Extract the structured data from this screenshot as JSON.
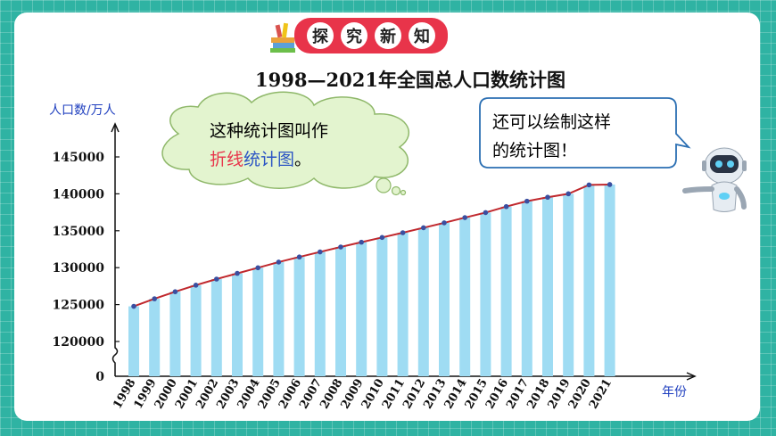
{
  "header": {
    "chars": [
      "探",
      "究",
      "新",
      "知"
    ]
  },
  "chart_data": {
    "type": "bar",
    "title": "1998—2021年全国总人口数统计图",
    "ylabel": "人口数/万人",
    "xlabel": "年份",
    "categories": [
      "1998",
      "1999",
      "2000",
      "2001",
      "2002",
      "2003",
      "2004",
      "2005",
      "2006",
      "2007",
      "2008",
      "2009",
      "2010",
      "2011",
      "2012",
      "2013",
      "2014",
      "2015",
      "2016",
      "2017",
      "2018",
      "2019",
      "2020",
      "2021"
    ],
    "values": [
      124761,
      125786,
      126743,
      127627,
      128453,
      129227,
      129988,
      130756,
      131448,
      132129,
      132802,
      133450,
      134091,
      134735,
      135404,
      136072,
      136782,
      137462,
      138271,
      139008,
      139538,
      140005,
      141212,
      141260
    ],
    "yticks": [
      0,
      120000,
      125000,
      130000,
      135000,
      140000,
      145000
    ],
    "ylim": [
      120000,
      145000
    ],
    "axis_break": true,
    "line_overlay": true,
    "colors": {
      "bar": "#9fdcf3",
      "line": "#c0282d",
      "point": "#3a4fa0"
    }
  },
  "bubbles": {
    "left_line1": "这种统计图叫作",
    "left_line2_part1": "折线",
    "left_line2_part2": "统计图",
    "left_line2_part3": "。",
    "right_line1": "还可以绘制这样",
    "right_line2": "的统计图！"
  },
  "colors": {
    "frame": "#2fb3a3",
    "header_bg": "#e8344a",
    "red_text": "#e8344a",
    "blue_text": "#2b54c4"
  },
  "icons": [
    "books-icon",
    "robot-icon"
  ]
}
